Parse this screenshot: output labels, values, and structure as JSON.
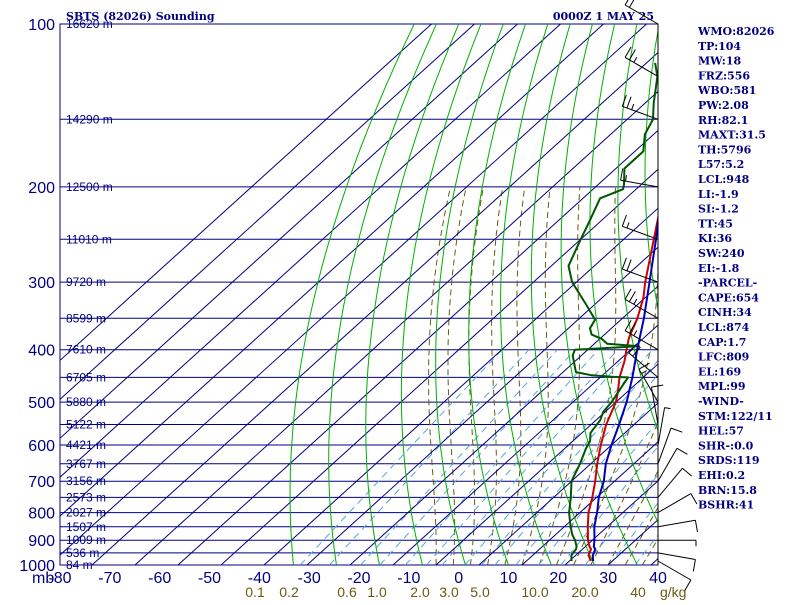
{
  "header": {
    "station": "SBTS (82026) Sounding",
    "time": "0000Z  1 MAY 25"
  },
  "chart_data": {
    "type": "line",
    "title": "SBTS (82026) Sounding",
    "pressure_unit": "mb",
    "mixing_ratio_unit": "g/kg",
    "ylim": [
      100,
      1000
    ],
    "xlim": [
      -80,
      40
    ],
    "pressure_ticks": [
      {
        "p": 100,
        "label": "100"
      },
      {
        "p": 200,
        "label": "200"
      },
      {
        "p": 300,
        "label": "300"
      },
      {
        "p": 400,
        "label": "400"
      },
      {
        "p": 500,
        "label": "500"
      },
      {
        "p": 600,
        "label": "600"
      },
      {
        "p": 700,
        "label": "700"
      },
      {
        "p": 800,
        "label": "800"
      },
      {
        "p": 900,
        "label": "900"
      },
      {
        "p": 1000,
        "label": "1000"
      }
    ],
    "height_labels": [
      {
        "p": 100,
        "label": "16620 m"
      },
      {
        "p": 150,
        "label": "14290 m"
      },
      {
        "p": 200,
        "label": "12500 m"
      },
      {
        "p": 250,
        "label": "11010 m"
      },
      {
        "p": 300,
        "label": "9720 m"
      },
      {
        "p": 350,
        "label": "8599 m"
      },
      {
        "p": 400,
        "label": "7610 m"
      },
      {
        "p": 450,
        "label": "6705 m"
      },
      {
        "p": 500,
        "label": "5880 m"
      },
      {
        "p": 550,
        "label": "5122 m"
      },
      {
        "p": 600,
        "label": "4421 m"
      },
      {
        "p": 650,
        "label": "3767 m"
      },
      {
        "p": 700,
        "label": "3156 m"
      },
      {
        "p": 750,
        "label": "2573 m"
      },
      {
        "p": 800,
        "label": "2027 m"
      },
      {
        "p": 850,
        "label": "1507 m"
      },
      {
        "p": 900,
        "label": "1009 m"
      },
      {
        "p": 950,
        "label": "536 m"
      },
      {
        "p": 1000,
        "label": "84 m"
      }
    ],
    "temperature_ticks": [
      "-80",
      "-70",
      "-60",
      "-50",
      "-40",
      "-30",
      "-20",
      "-10",
      "0",
      "10",
      "20",
      "30",
      "40"
    ],
    "mixing_ratio_labels": [
      "0.1",
      "0.2",
      "0.6",
      "1.0",
      "2.0",
      "3.0",
      "5.0",
      "10.0",
      "20.0",
      "40"
    ],
    "series": [
      {
        "key": "temperature",
        "color": "#cc0000",
        "points": [
          [
            983,
            25.0
          ],
          [
            960,
            23.0
          ],
          [
            935,
            22.0
          ],
          [
            925,
            21.0
          ],
          [
            900,
            19.0
          ],
          [
            850,
            15.5
          ],
          [
            800,
            12.0
          ],
          [
            750,
            9.0
          ],
          [
            700,
            5.5
          ],
          [
            650,
            1.5
          ],
          [
            600,
            -2.5
          ],
          [
            550,
            -6.5
          ],
          [
            500,
            -10.0
          ],
          [
            480,
            -12.0
          ],
          [
            450,
            -15.5
          ],
          [
            420,
            -18.5
          ],
          [
            400,
            -21.0
          ],
          [
            380,
            -23.5
          ],
          [
            350,
            -26.5
          ],
          [
            320,
            -30.5
          ],
          [
            300,
            -34.0
          ],
          [
            250,
            -43.0
          ],
          [
            200,
            -54.0
          ],
          [
            150,
            -66.0
          ],
          [
            120,
            -74.0
          ],
          [
            100,
            -80.0
          ]
        ]
      },
      {
        "key": "dewpoint",
        "color": "#005500",
        "points": [
          [
            983,
            20.5
          ],
          [
            960,
            19.0
          ],
          [
            935,
            18.5
          ],
          [
            925,
            18.0
          ],
          [
            900,
            16.0
          ],
          [
            880,
            14.0
          ],
          [
            850,
            11.5
          ],
          [
            800,
            7.5
          ],
          [
            750,
            4.0
          ],
          [
            700,
            0.0
          ],
          [
            650,
            -2.5
          ],
          [
            610,
            -5.0
          ],
          [
            590,
            -6.0
          ],
          [
            570,
            -8.0
          ],
          [
            555,
            -8.5
          ],
          [
            540,
            -9.0
          ],
          [
            520,
            -10.5
          ],
          [
            500,
            -11.0
          ],
          [
            470,
            -12.5
          ],
          [
            450,
            -13.5
          ],
          [
            449,
            -17.0
          ],
          [
            446,
            -22.5
          ],
          [
            440,
            -27.0
          ],
          [
            410,
            -32.0
          ],
          [
            400,
            -33.0
          ],
          [
            394,
            -19.0
          ],
          [
            390,
            -27.0
          ],
          [
            382,
            -29.5
          ],
          [
            375,
            -33.0
          ],
          [
            365,
            -35.0
          ],
          [
            352,
            -36.0
          ],
          [
            330,
            -42.0
          ],
          [
            300,
            -51.0
          ],
          [
            280,
            -56.0
          ],
          [
            250,
            -60.0
          ],
          [
            232,
            -62.5
          ],
          [
            210,
            -66.0
          ],
          [
            202,
            -63.0
          ],
          [
            198,
            -64.0
          ],
          [
            185,
            -68.0
          ],
          [
            172,
            -68.0
          ],
          [
            160,
            -72.0
          ],
          [
            150,
            -74.0
          ],
          [
            140,
            -78.0
          ],
          [
            125,
            -84.0
          ],
          [
            118,
            -88.0
          ]
        ]
      },
      {
        "key": "parcel",
        "color": "#0000b4",
        "points": [
          [
            983,
            25.5
          ],
          [
            960,
            24.0
          ],
          [
            935,
            23.0
          ],
          [
            925,
            22.0
          ],
          [
            900,
            20.5
          ],
          [
            850,
            17.0
          ],
          [
            800,
            14.0
          ],
          [
            750,
            10.5
          ],
          [
            700,
            7.5
          ],
          [
            650,
            3.5
          ],
          [
            600,
            0.0
          ],
          [
            550,
            -3.5
          ],
          [
            500,
            -7.5
          ],
          [
            450,
            -12.5
          ],
          [
            400,
            -18.5
          ],
          [
            350,
            -25.0
          ],
          [
            300,
            -33.0
          ],
          [
            250,
            -42.5
          ],
          [
            200,
            -54.5
          ],
          [
            150,
            -68.0
          ],
          [
            120,
            -78.0
          ],
          [
            100,
            -85.0
          ]
        ]
      }
    ],
    "wind_barbs": [
      {
        "p": 983,
        "dir": 120,
        "spd": 10
      },
      {
        "p": 950,
        "dir": 100,
        "spd": 10
      },
      {
        "p": 900,
        "dir": 90,
        "spd": 5
      },
      {
        "p": 850,
        "dir": 80,
        "spd": 10
      },
      {
        "p": 800,
        "dir": 60,
        "spd": 10
      },
      {
        "p": 750,
        "dir": 40,
        "spd": 10
      },
      {
        "p": 700,
        "dir": 30,
        "spd": 10
      },
      {
        "p": 650,
        "dir": 20,
        "spd": 10
      },
      {
        "p": 600,
        "dir": 10,
        "spd": 5
      },
      {
        "p": 550,
        "dir": 350,
        "spd": 10
      },
      {
        "p": 500,
        "dir": 330,
        "spd": 15
      },
      {
        "p": 450,
        "dir": 310,
        "spd": 20
      },
      {
        "p": 400,
        "dir": 300,
        "spd": 25
      },
      {
        "p": 350,
        "dir": 300,
        "spd": 25
      },
      {
        "p": 300,
        "dir": 290,
        "spd": 20
      },
      {
        "p": 250,
        "dir": 290,
        "spd": 15
      },
      {
        "p": 200,
        "dir": 280,
        "spd": 15
      },
      {
        "p": 150,
        "dir": 290,
        "spd": 25
      },
      {
        "p": 125,
        "dir": 300,
        "spd": 25
      },
      {
        "p": 100,
        "dir": 300,
        "spd": 20
      }
    ]
  },
  "indices": [
    "WMO:82026",
    "TP:104",
    "MW:18",
    "FRZ:556",
    "WBO:581",
    "PW:2.08",
    "RH:82.1",
    "MAXT:31.5",
    "TH:5796",
    "L57:5.2",
    "LCL:948",
    "LI:-1.9",
    "SI:-1.2",
    "TT:45",
    "KI:36",
    "SW:240",
    "EI:-1.8",
    "-PARCEL-",
    "CAPE:654",
    "CINH:34",
    "LCL:874",
    "CAP:1.7",
    "LFC:809",
    "EL:169",
    "MPL:99",
    "-WIND-",
    "STM:122/11",
    "HEL:57",
    "SHR-:0.0",
    "SRDS:119",
    "EHI:0.2",
    "BRN:15.8",
    "BSHR:41"
  ],
  "colors": {
    "grid": "#000080",
    "dry_adiabat": "#00b000",
    "moist_adiabat": "#6b5a10",
    "mixing_ratio": "#55a8d8",
    "barbs": "#000000"
  }
}
